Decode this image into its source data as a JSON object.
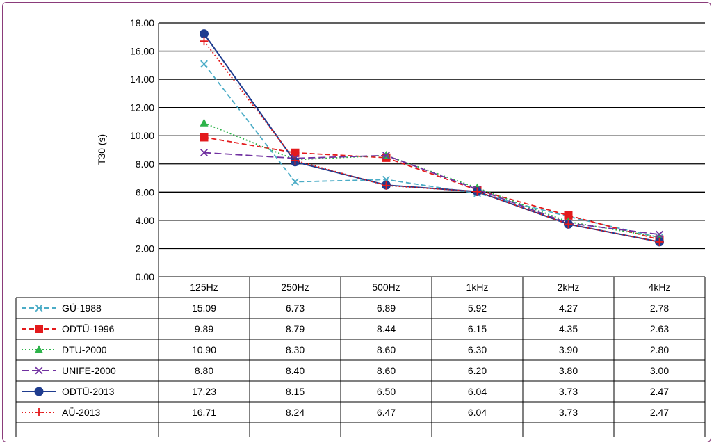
{
  "chart_data": {
    "type": "line",
    "ylabel": "T30 (s)",
    "xlabel": "",
    "title": "",
    "ylim": [
      0,
      18
    ],
    "ytick_step": 2,
    "y_tick_labels": [
      "0.00",
      "2.00",
      "4.00",
      "6.00",
      "8.00",
      "10.00",
      "12.00",
      "14.00",
      "16.00",
      "18.00"
    ],
    "grid": "horizontal",
    "legend": "data-table",
    "categories": [
      "125Hz",
      "250Hz",
      "500Hz",
      "1kHz",
      "2kHz",
      "4kHz"
    ],
    "series": [
      {
        "name": "GÜ-1988",
        "color": "#4bacc6",
        "dash": "dashed",
        "marker": "x",
        "values": [
          15.09,
          6.73,
          6.89,
          5.92,
          4.27,
          2.78
        ],
        "labels": [
          "15.09",
          "6.73",
          "6.89",
          "5.92",
          "4.27",
          "2.78"
        ]
      },
      {
        "name": "ODTÜ-1996",
        "color": "#e31a1c",
        "dash": "dashed",
        "marker": "square",
        "values": [
          9.89,
          8.79,
          8.44,
          6.15,
          4.35,
          2.63
        ],
        "labels": [
          "9.89",
          "8.79",
          "8.44",
          "6.15",
          "4.35",
          "2.63"
        ]
      },
      {
        "name": "DTU-2000",
        "color": "#2db34a",
        "dash": "dotted",
        "marker": "triangle",
        "values": [
          10.9,
          8.3,
          8.6,
          6.3,
          3.9,
          2.8
        ],
        "labels": [
          "10.90",
          "8.30",
          "8.60",
          "6.30",
          "3.90",
          "2.80"
        ]
      },
      {
        "name": "UNIFE-2000",
        "color": "#7030a0",
        "dash": "longdash",
        "marker": "x",
        "values": [
          8.8,
          8.4,
          8.6,
          6.2,
          3.8,
          3.0
        ],
        "labels": [
          "8.80",
          "8.40",
          "8.60",
          "6.20",
          "3.80",
          "3.00"
        ]
      },
      {
        "name": "ODTÜ-2013",
        "color": "#1f3c8f",
        "dash": "solid",
        "marker": "circle",
        "values": [
          17.23,
          8.15,
          6.5,
          6.04,
          3.73,
          2.47
        ],
        "labels": [
          "17.23",
          "8.15",
          "6.50",
          "6.04",
          "3.73",
          "2.47"
        ]
      },
      {
        "name": "AÜ-2013",
        "color": "#e31a1c",
        "dash": "dotted",
        "marker": "plus",
        "values": [
          16.71,
          8.24,
          6.47,
          6.04,
          3.73,
          2.47
        ],
        "labels": [
          "16.71",
          "8.24",
          "6.47",
          "6.04",
          "3.73",
          "2.47"
        ]
      }
    ]
  }
}
